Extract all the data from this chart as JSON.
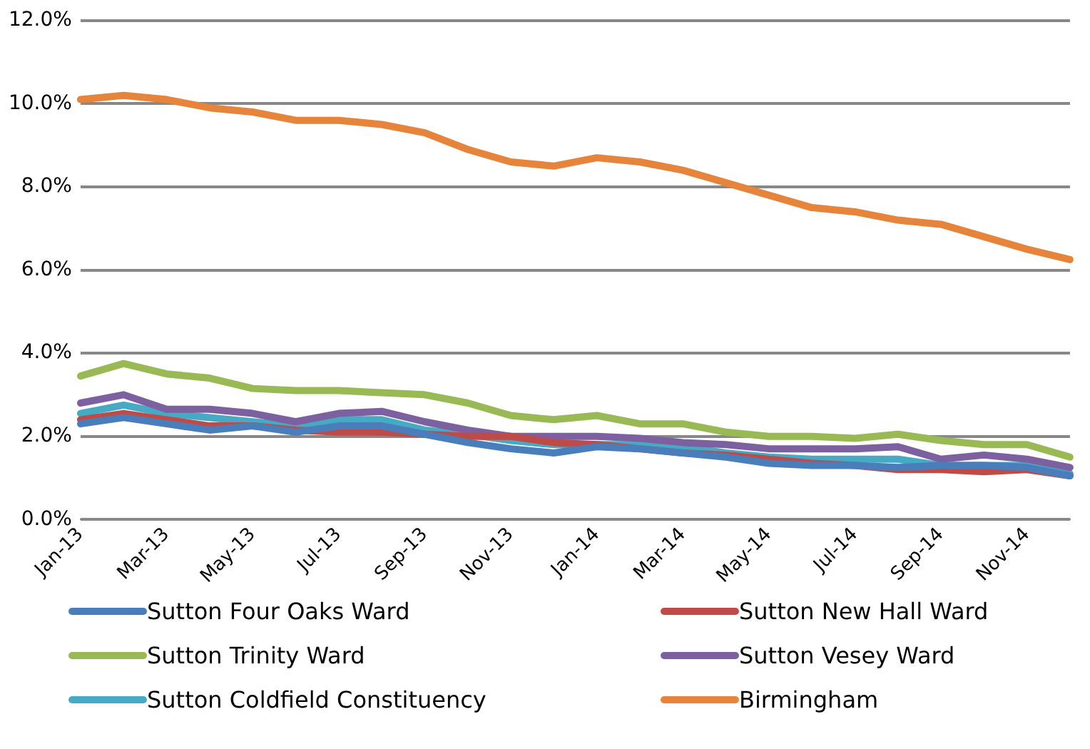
{
  "chart_data": {
    "type": "line",
    "categories": [
      "Jan-13",
      null,
      "Mar-13",
      null,
      "May-13",
      null,
      "Jul-13",
      null,
      "Sep-13",
      null,
      "Nov-13",
      null,
      "Jan-14",
      null,
      "Mar-14",
      null,
      "May-14",
      null,
      "Jul-14",
      null,
      "Sep-14",
      null,
      "Nov-14",
      null
    ],
    "series": [
      {
        "name": "Sutton Four Oaks Ward",
        "color": "#4a7ebb",
        "values": [
          2.3,
          2.45,
          2.3,
          2.15,
          2.25,
          2.1,
          2.25,
          2.25,
          2.05,
          1.85,
          1.7,
          1.6,
          1.75,
          1.7,
          1.6,
          1.5,
          1.35,
          1.3,
          1.3,
          1.25,
          1.3,
          1.3,
          1.25,
          1.05
        ]
      },
      {
        "name": "Sutton New Hall Ward",
        "color": "#be4b48",
        "values": [
          2.4,
          2.55,
          2.4,
          2.25,
          2.25,
          2.15,
          2.1,
          2.1,
          2.05,
          2.0,
          2.0,
          1.85,
          1.8,
          1.7,
          1.6,
          1.55,
          1.45,
          1.35,
          1.3,
          1.2,
          1.2,
          1.15,
          1.2,
          1.05
        ]
      },
      {
        "name": "Sutton Trinity Ward",
        "color": "#98b954",
        "values": [
          3.45,
          3.75,
          3.5,
          3.4,
          3.15,
          3.1,
          3.1,
          3.05,
          3.0,
          2.8,
          2.5,
          2.4,
          2.5,
          2.3,
          2.3,
          2.1,
          2.0,
          2.0,
          1.95,
          2.05,
          1.9,
          1.8,
          1.8,
          1.5
        ]
      },
      {
        "name": "Sutton Vesey Ward",
        "color": "#7d60a0",
        "values": [
          2.8,
          3.0,
          2.65,
          2.65,
          2.55,
          2.35,
          2.55,
          2.6,
          2.35,
          2.15,
          2.0,
          2.0,
          2.0,
          1.95,
          1.85,
          1.8,
          1.7,
          1.7,
          1.7,
          1.75,
          1.45,
          1.55,
          1.45,
          1.25
        ]
      },
      {
        "name": "Sutton Coldfield Constituency",
        "color": "#46aac5",
        "values": [
          2.55,
          2.75,
          2.55,
          2.45,
          2.35,
          2.25,
          2.4,
          2.4,
          2.15,
          2.05,
          1.9,
          1.8,
          1.8,
          1.8,
          1.75,
          1.6,
          1.5,
          1.45,
          1.45,
          1.45,
          1.3,
          1.3,
          1.3,
          1.1
        ]
      },
      {
        "name": "Birmingham",
        "color": "#e5843a",
        "values": [
          10.1,
          10.2,
          10.1,
          9.9,
          9.8,
          9.6,
          9.6,
          9.5,
          9.3,
          8.9,
          8.6,
          8.5,
          8.7,
          8.6,
          8.4,
          8.1,
          7.8,
          7.5,
          7.4,
          7.2,
          7.1,
          6.8,
          6.5,
          6.25
        ]
      }
    ],
    "ylim": [
      0,
      12
    ],
    "yticks": [
      {
        "value": 0,
        "label": "0.0%"
      },
      {
        "value": 2,
        "label": "2.0%"
      },
      {
        "value": 4,
        "label": "4.0%"
      },
      {
        "value": 6,
        "label": "6.0%"
      },
      {
        "value": 8,
        "label": "8.0%"
      },
      {
        "value": 10,
        "label": "10.0%"
      },
      {
        "value": 12,
        "label": "12.0%"
      }
    ],
    "grid": "y",
    "legend": "bottom",
    "marker": "none",
    "line_style": "solid"
  }
}
